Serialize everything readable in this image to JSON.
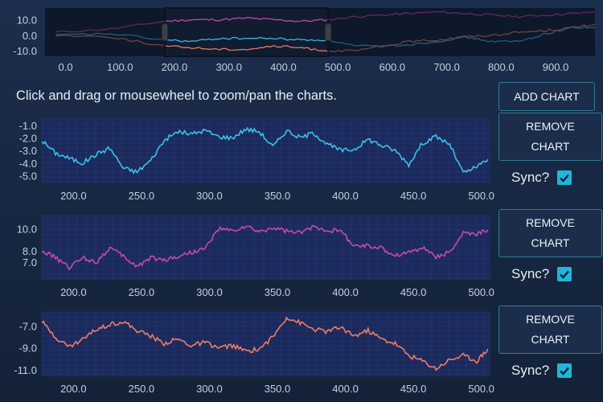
{
  "instruction": "Click and drag or mousewheel to zoom/pan the charts.",
  "buttons": {
    "add_chart": "ADD CHART",
    "remove_chart": "REMOVE CHART"
  },
  "sync_label": "Sync?",
  "colors": {
    "blue": "#3ec0ea",
    "magenta": "#c84aa8",
    "orange": "#f07d67",
    "checkbox": "#21b6d9"
  },
  "chart_data": [
    {
      "type": "line",
      "role": "overview",
      "x_range": [
        -20,
        990
      ],
      "y_range": [
        -13.5,
        17.5
      ],
      "yticks": [
        "10.0",
        "0.0",
        "-10.0"
      ],
      "ytick_values": [
        10,
        0,
        -10
      ],
      "xticks": [
        "0.0",
        "100.0",
        "200.0",
        "300.0",
        "400.0",
        "500.0",
        "600.0",
        "700.0",
        "800.0",
        "900.0"
      ],
      "xtick_values": [
        0,
        100,
        200,
        300,
        400,
        500,
        600,
        700,
        800,
        900
      ],
      "selection": [
        200,
        500
      ],
      "series": [
        {
          "color": "magenta",
          "x": [
            0,
            100,
            200,
            250,
            300,
            350,
            400,
            450,
            500,
            550,
            600,
            650,
            700,
            750,
            800,
            850,
            900,
            950,
            990
          ],
          "y": [
            2,
            4,
            9,
            10,
            10,
            11,
            10,
            9,
            10,
            12,
            13,
            14,
            15,
            14,
            13,
            12,
            13,
            14,
            15
          ]
        },
        {
          "color": "blue",
          "x": [
            0,
            100,
            200,
            250,
            300,
            350,
            400,
            450,
            500,
            550,
            600,
            650,
            700,
            750,
            800,
            850,
            900,
            950,
            990
          ],
          "y": [
            0,
            1,
            -3,
            -4,
            -2,
            -2,
            -2,
            -3,
            -3,
            -7,
            -7,
            -6,
            -4,
            -1,
            -4,
            -4,
            1,
            5,
            5
          ]
        },
        {
          "color": "orange",
          "x": [
            0,
            100,
            200,
            250,
            300,
            350,
            400,
            450,
            500,
            550,
            600,
            650,
            700,
            750,
            800,
            850,
            900,
            950,
            990
          ],
          "y": [
            0,
            -1,
            -7,
            -8,
            -9,
            -9,
            -7,
            -8,
            -10,
            -10,
            -7,
            -4,
            -3,
            -1,
            0,
            2,
            3,
            5,
            7
          ]
        }
      ]
    },
    {
      "type": "line",
      "role": "detail",
      "color": "blue",
      "x_range": [
        185,
        515
      ],
      "y_range": [
        -5.6,
        -0.5
      ],
      "yticks": [
        "-1.0",
        "-2.0",
        "-3.0",
        "-4.0",
        "-5.0"
      ],
      "ytick_values": [
        -1,
        -2,
        -3,
        -4,
        -5
      ],
      "xticks": [
        "200.0",
        "250.0",
        "300.0",
        "350.0",
        "400.0",
        "450.0",
        "500.0"
      ],
      "xtick_values": [
        200,
        250,
        300,
        350,
        400,
        450,
        500
      ],
      "x": [
        185,
        195,
        205,
        215,
        225,
        235,
        245,
        255,
        265,
        275,
        285,
        295,
        305,
        315,
        325,
        335,
        345,
        355,
        365,
        375,
        385,
        395,
        405,
        415,
        425,
        435,
        445,
        455,
        465,
        475,
        485,
        495,
        505,
        513
      ],
      "y": [
        -2.2,
        -3.2,
        -3.6,
        -4.0,
        -3.3,
        -2.8,
        -4.4,
        -4.7,
        -3.8,
        -2.2,
        -1.5,
        -1.7,
        -1.4,
        -1.9,
        -2.0,
        -1.3,
        -1.5,
        -2.7,
        -1.4,
        -2.0,
        -1.6,
        -2.5,
        -3.0,
        -2.9,
        -2.1,
        -2.6,
        -3.0,
        -4.1,
        -2.4,
        -1.9,
        -2.5,
        -4.8,
        -4.3,
        -3.7
      ]
    },
    {
      "type": "line",
      "role": "detail",
      "color": "magenta",
      "x_range": [
        185,
        515
      ],
      "y_range": [
        5.4,
        11.2
      ],
      "yticks": [
        "10.0",
        "8.0",
        "7.0"
      ],
      "ytick_values": [
        10,
        8,
        7
      ],
      "xticks": [
        "200.0",
        "250.0",
        "300.0",
        "350.0",
        "400.0",
        "450.0",
        "500.0"
      ],
      "xtick_values": [
        200,
        250,
        300,
        350,
        400,
        450,
        500
      ],
      "x": [
        185,
        195,
        205,
        215,
        225,
        235,
        245,
        255,
        265,
        275,
        285,
        295,
        305,
        315,
        325,
        335,
        345,
        355,
        365,
        375,
        385,
        395,
        405,
        415,
        425,
        435,
        445,
        455,
        465,
        475,
        485,
        495,
        505,
        513
      ],
      "y": [
        8.0,
        7.4,
        6.5,
        7.4,
        7.0,
        8.3,
        7.5,
        6.6,
        7.4,
        7.2,
        7.5,
        7.9,
        8.2,
        10.0,
        9.8,
        10.2,
        9.7,
        10.1,
        9.8,
        9.6,
        10.2,
        9.9,
        9.8,
        8.4,
        8.5,
        8.2,
        7.6,
        7.9,
        8.3,
        7.5,
        7.9,
        9.6,
        9.5,
        9.9
      ]
    },
    {
      "type": "line",
      "role": "detail",
      "color": "orange",
      "x_range": [
        185,
        515
      ],
      "y_range": [
        -11.6,
        -5.7
      ],
      "yticks": [
        "-7.0",
        "-9.0",
        "-11.0"
      ],
      "ytick_values": [
        -7,
        -9,
        -11
      ],
      "xticks": [
        "200.0",
        "250.0",
        "300.0",
        "350.0",
        "400.0",
        "450.0",
        "500.0"
      ],
      "xtick_values": [
        200,
        250,
        300,
        350,
        400,
        450,
        500
      ],
      "x": [
        185,
        195,
        205,
        215,
        225,
        235,
        245,
        255,
        265,
        275,
        285,
        295,
        305,
        315,
        325,
        335,
        345,
        355,
        365,
        375,
        385,
        395,
        405,
        415,
        425,
        435,
        445,
        455,
        465,
        475,
        485,
        495,
        505,
        513
      ],
      "y": [
        -6.6,
        -8.0,
        -8.9,
        -8.2,
        -7.3,
        -6.8,
        -6.6,
        -7.4,
        -7.9,
        -8.6,
        -8.2,
        -8.8,
        -8.5,
        -9.0,
        -8.8,
        -9.3,
        -9.1,
        -8.0,
        -6.2,
        -6.7,
        -7.3,
        -7.5,
        -7.1,
        -7.9,
        -7.4,
        -8.2,
        -8.6,
        -9.7,
        -10.2,
        -10.9,
        -10.1,
        -9.7,
        -10.2,
        -9.1
      ]
    }
  ]
}
